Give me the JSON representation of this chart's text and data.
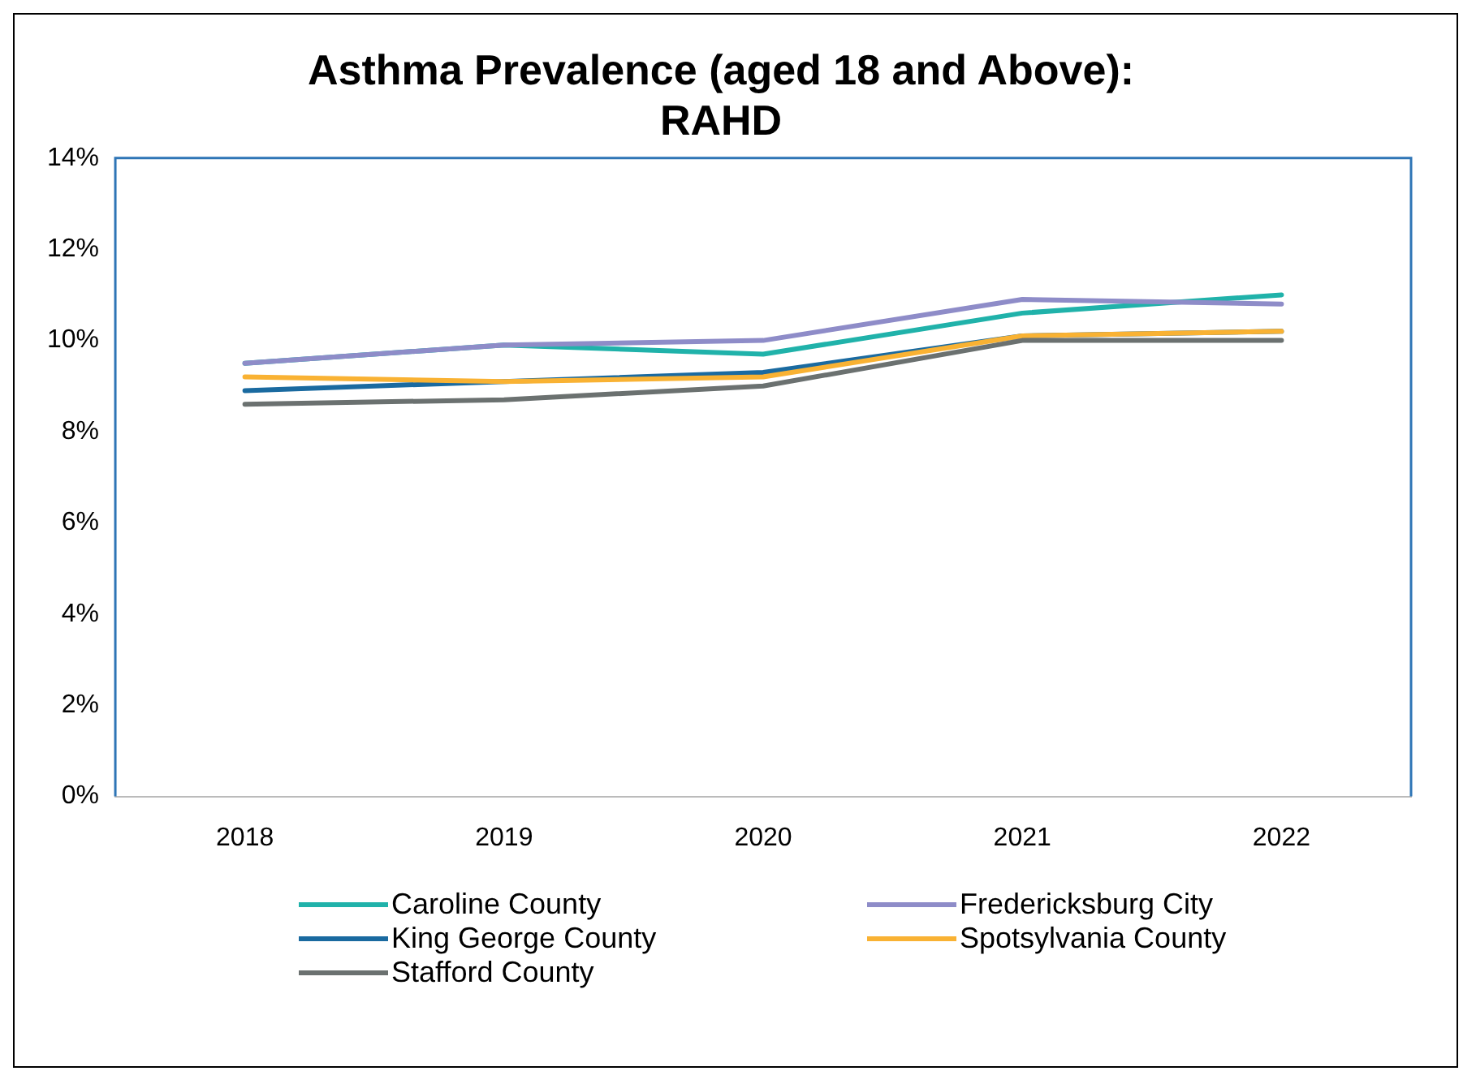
{
  "chart_data": {
    "type": "line",
    "title": "Asthma Prevalence (aged 18 and Above): RAHD",
    "categories": [
      "2018",
      "2019",
      "2020",
      "2021",
      "2022"
    ],
    "series": [
      {
        "name": "Caroline County",
        "color": "#20b2aa",
        "values": [
          9.5,
          9.9,
          9.7,
          10.6,
          11.0
        ]
      },
      {
        "name": "Fredericksburg City",
        "color": "#8e8cc8",
        "values": [
          9.5,
          9.9,
          10.0,
          10.9,
          10.8
        ]
      },
      {
        "name": "King George County",
        "color": "#1a6aa0",
        "values": [
          8.9,
          9.1,
          9.3,
          10.1,
          10.2
        ]
      },
      {
        "name": "Spotsylvania County",
        "color": "#f9b233",
        "values": [
          9.2,
          9.1,
          9.2,
          10.1,
          10.2
        ]
      },
      {
        "name": "Stafford County",
        "color": "#6b7170",
        "values": [
          8.6,
          8.7,
          9.0,
          10.0,
          10.0
        ]
      }
    ],
    "ylim": [
      0,
      14
    ],
    "yticks": [
      {
        "value": 0,
        "label": "0%"
      },
      {
        "value": 2,
        "label": "2%"
      },
      {
        "value": 4,
        "label": "4%"
      },
      {
        "value": 6,
        "label": "6%"
      },
      {
        "value": 8,
        "label": "8%"
      },
      {
        "value": 10,
        "label": "10%"
      },
      {
        "value": 12,
        "label": "12%"
      },
      {
        "value": 14,
        "label": "14%"
      }
    ],
    "grid": false,
    "legend": "bottom",
    "marker": "none",
    "line_style": "solid"
  }
}
